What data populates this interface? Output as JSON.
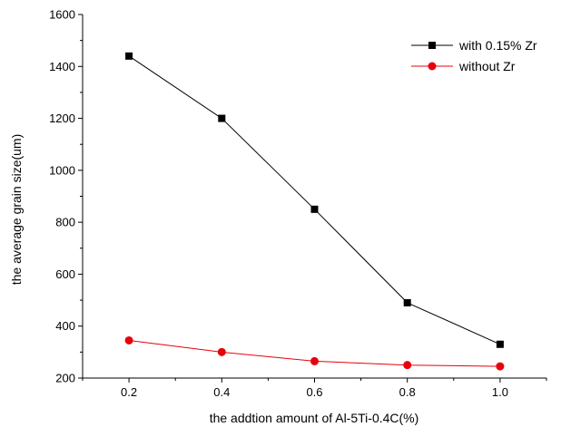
{
  "chart_data": {
    "type": "line",
    "xlabel": "the addtion amount of Al-5Ti-0.4C(%)",
    "ylabel": "the average grain size(um)",
    "xlim": [
      0.1,
      1.1
    ],
    "ylim": [
      200,
      1600
    ],
    "xticks": [
      0.2,
      0.4,
      0.6,
      0.8,
      1.0
    ],
    "xtick_labels": [
      "0.2",
      "0.4",
      "0.6",
      "0.8",
      "1.0"
    ],
    "yticks": [
      200,
      400,
      600,
      800,
      1000,
      1200,
      1400,
      1600
    ],
    "ytick_labels": [
      "200",
      "400",
      "600",
      "800",
      "1000",
      "1200",
      "1400",
      "1600"
    ],
    "grid": false,
    "legend_position": "top-right",
    "series": [
      {
        "name": "with 0.15% Zr",
        "color": "#000000",
        "marker": "square",
        "x": [
          0.2,
          0.4,
          0.6,
          0.8,
          1.0
        ],
        "values": [
          1440,
          1200,
          850,
          490,
          330
        ]
      },
      {
        "name": "without Zr",
        "color": "#e8000b",
        "marker": "circle",
        "x": [
          0.2,
          0.4,
          0.6,
          0.8,
          1.0
        ],
        "values": [
          345,
          300,
          265,
          250,
          245
        ]
      }
    ]
  }
}
